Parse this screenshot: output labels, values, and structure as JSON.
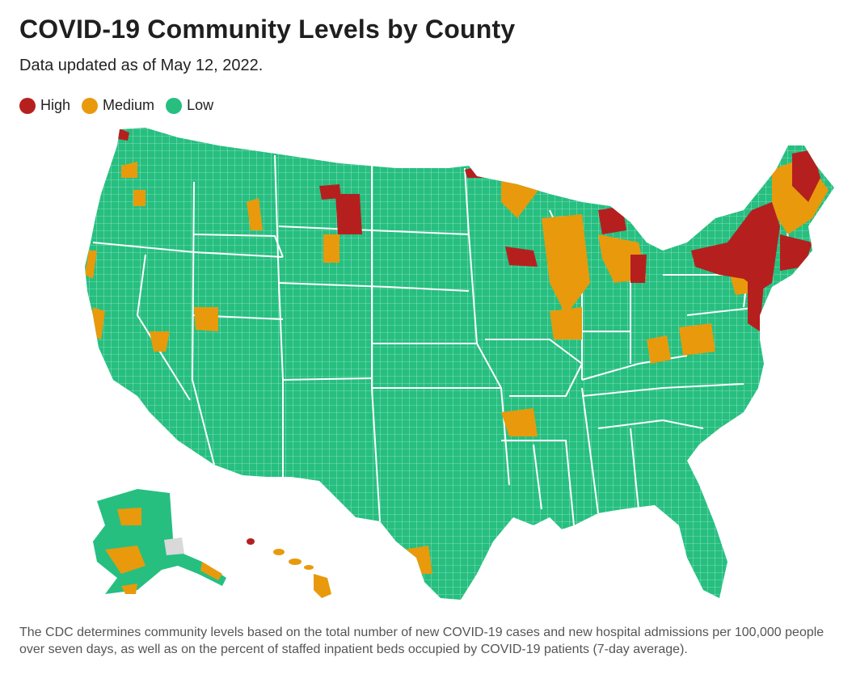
{
  "title": "COVID-19 Community Levels by County",
  "subtitle": "Data updated as of May 12, 2022.",
  "legend": [
    {
      "label": "High",
      "color": "#b5201f"
    },
    {
      "label": "Medium",
      "color": "#e89a0c"
    },
    {
      "label": "Low",
      "color": "#26bf80"
    }
  ],
  "colors": {
    "high": "#b5201f",
    "medium": "#e89a0c",
    "low": "#26bf80",
    "no_data": "#d9d9d9",
    "border": "#ffffff"
  },
  "footnote": "The CDC determines community levels based on the total number of new COVID-19 cases and new hospital admissions per 100,000 people over seven days, as well as on the percent of staffed inpatient beds occupied by COVID-19 patients (7-day average)."
}
